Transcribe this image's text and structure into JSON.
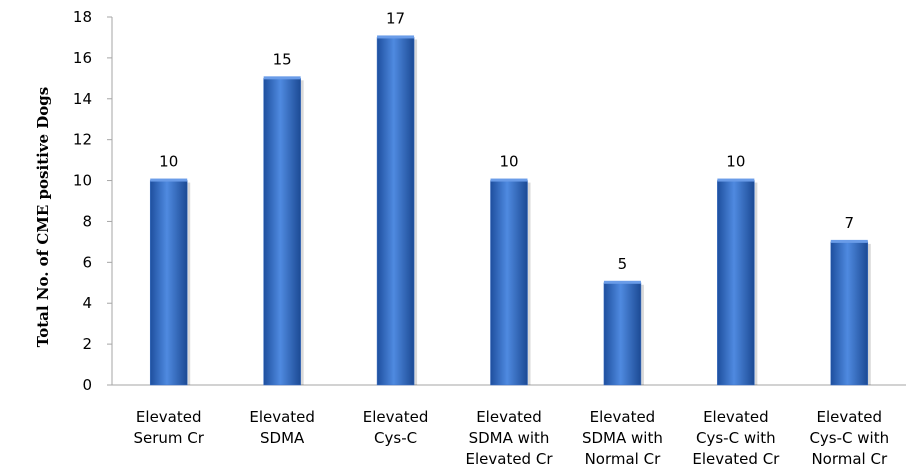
{
  "chart_data": {
    "type": "bar",
    "ylabel": "Total No. of CME positive Dogs",
    "ylim": [
      0,
      18
    ],
    "yticks": [
      "0",
      "2",
      "4",
      "6",
      "8",
      "10",
      "12",
      "14",
      "16",
      "18"
    ],
    "grid": false,
    "legend": "none",
    "bar_color": "#3a6fc4",
    "categories": [
      [
        "Elevated",
        "Serum Cr"
      ],
      [
        "Elevated",
        "SDMA"
      ],
      [
        "Elevated",
        "Cys-C"
      ],
      [
        "Elevated",
        "SDMA with",
        "Elevated Cr"
      ],
      [
        "Elevated",
        "SDMA with",
        "Normal Cr"
      ],
      [
        "Elevated",
        "Cys-C with",
        "Elevated Cr"
      ],
      [
        "Elevated",
        "Cys-C with",
        "Normal Cr"
      ]
    ],
    "values": [
      10,
      15,
      17,
      10,
      5,
      10,
      7
    ],
    "data_labels": [
      "10",
      "15",
      "17",
      "10",
      "5",
      "10",
      "7"
    ]
  }
}
